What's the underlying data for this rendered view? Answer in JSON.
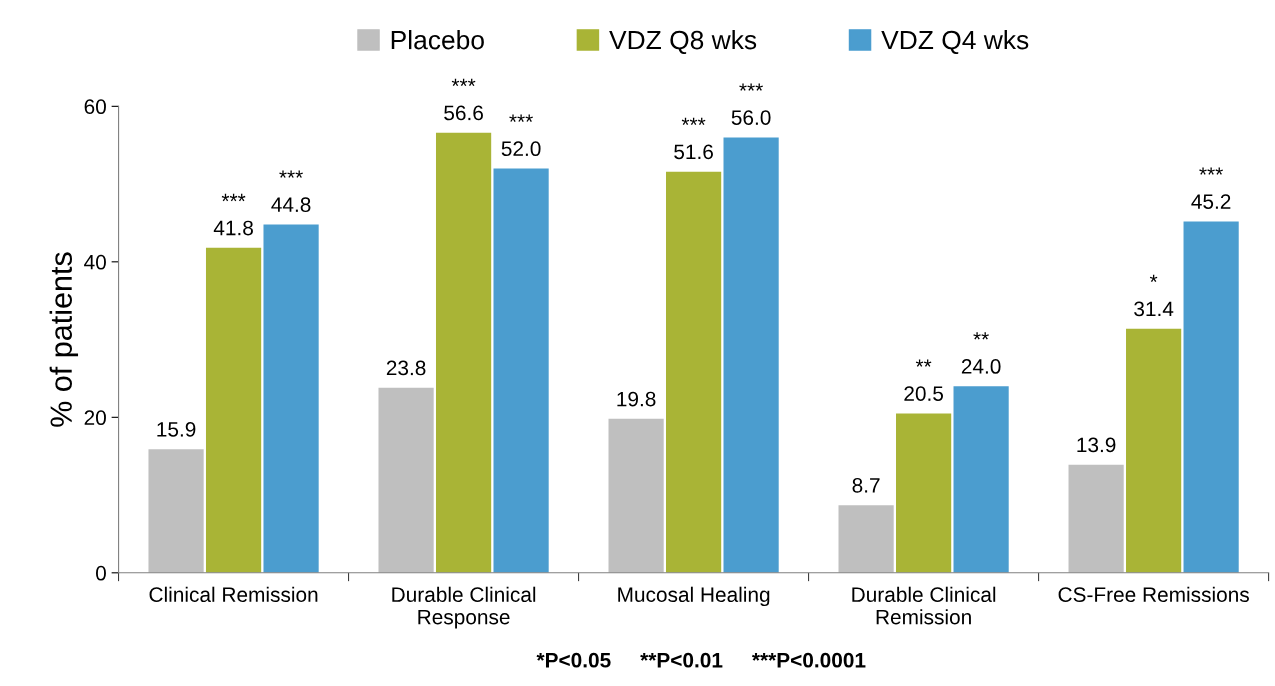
{
  "chart_data": {
    "type": "bar",
    "ylabel": "% of patients",
    "categories": [
      "Clinical Remission",
      "Durable Clinical\nResponse",
      "Mucosal Healing",
      "Durable Clinical\nRemission",
      "CS-Free Remissions"
    ],
    "series": [
      {
        "name": "Placebo",
        "color": "#bfbfbf",
        "values": [
          15.9,
          23.8,
          19.8,
          8.7,
          13.9
        ],
        "value_labels": [
          "15.9",
          "23.8",
          "19.8",
          "8.7",
          "13.9"
        ]
      },
      {
        "name": "VDZ Q8 wks",
        "color": "#a9b436",
        "values": [
          41.8,
          56.6,
          51.6,
          20.5,
          31.4
        ],
        "value_labels": [
          "***\n41.8",
          "***\n56.6",
          "***\n51.6",
          "**\n20.5",
          "*\n31.4"
        ]
      },
      {
        "name": "VDZ Q4 wks",
        "color": "#4b9dcf",
        "values": [
          44.8,
          52.0,
          56.0,
          24.0,
          45.2
        ],
        "value_labels": [
          "***\n44.8",
          "***\n52.0",
          "***\n56.0",
          "**\n24.0",
          "***\n45.2"
        ]
      }
    ],
    "ylim": [
      0,
      60
    ],
    "yticks": [
      0,
      20,
      40,
      60
    ],
    "grid": false,
    "legend": "top",
    "annotations": [
      "*P<0.05     **P<0.01     ***P<0.0001"
    ]
  }
}
